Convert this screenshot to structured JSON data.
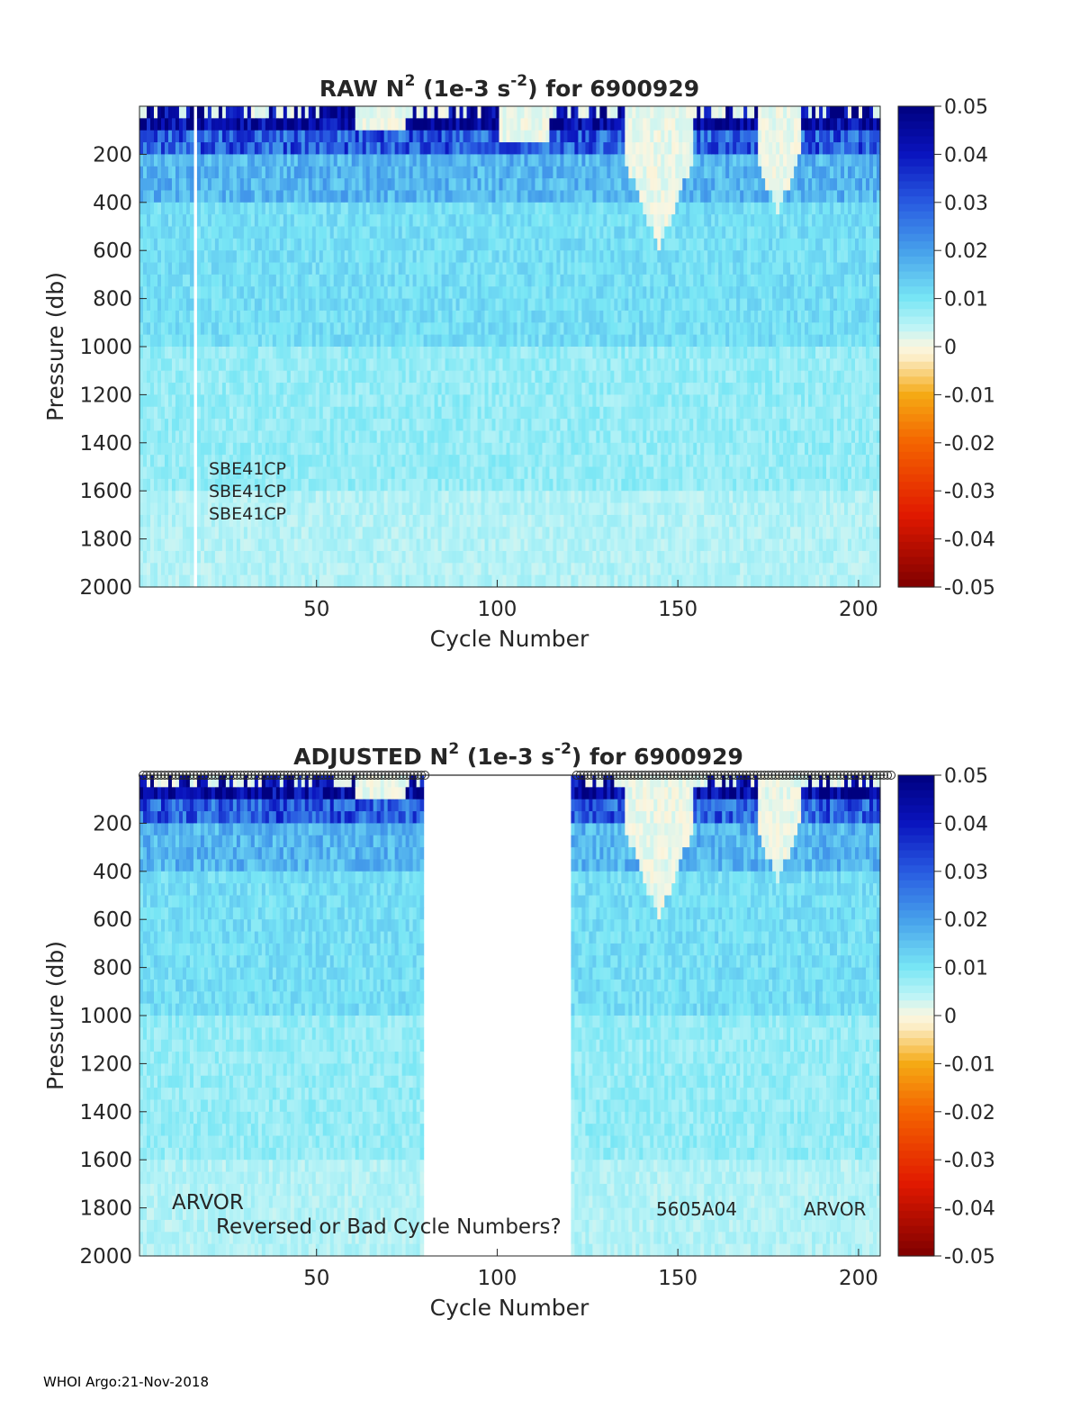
{
  "colorbar": {
    "ticks": [
      "0.05",
      "0.04",
      "0.03",
      "0.02",
      "0.01",
      "0",
      "-0.01",
      "-0.02",
      "-0.03",
      "-0.04",
      "-0.05"
    ],
    "range": [
      -0.05,
      0.05
    ]
  },
  "colors": {
    "positive_max": "#00007f",
    "mid_blue": "#3c8cf0",
    "light_cyan": "#9eeef8",
    "zero": "#fbf3de",
    "orange": "#f4a000",
    "red": "#e01a00",
    "negative_max": "#7f0000",
    "missing": "#ffffff"
  },
  "chart_data": [
    {
      "type": "heatmap",
      "title_parts": [
        "RAW N",
        "2",
        " (1e-3 s",
        "-2",
        ") for 6900929"
      ],
      "xlabel": "Cycle Number",
      "ylabel": "Pressure (db)",
      "xlim": [
        1,
        206
      ],
      "ylim": [
        2000,
        0
      ],
      "x_ticks": [
        "50",
        "100",
        "150",
        "200"
      ],
      "y_ticks": [
        "200",
        "400",
        "600",
        "800",
        "1000",
        "1200",
        "1400",
        "1600",
        "1800",
        "2000"
      ],
      "annotations": [
        "SBE41CP",
        "SBE41CP",
        "SBE41CP"
      ],
      "missing_cycles": [
        16
      ],
      "typical_values": {
        "surface_max": 0.05,
        "deep": 0.005,
        "range": [
          -0.05,
          0.05
        ]
      }
    },
    {
      "type": "heatmap",
      "title_parts": [
        "ADJUSTED N",
        "2",
        " (1e-3 s",
        "-2",
        ") for 6900929"
      ],
      "xlabel": "Cycle Number",
      "ylabel": "Pressure (db)",
      "xlim": [
        1,
        206
      ],
      "ylim": [
        2000,
        0
      ],
      "x_ticks": [
        "50",
        "100",
        "150",
        "200"
      ],
      "y_ticks": [
        "200",
        "400",
        "600",
        "800",
        "1000",
        "1200",
        "1400",
        "1600",
        "1800",
        "2000"
      ],
      "annotations": [
        "ARVOR",
        "Reversed or Bad Cycle Numbers?",
        "5605A04",
        "ARVOR"
      ],
      "missing_cycles_range": [
        80,
        120
      ],
      "marker_row": "circles at each cycle along top edge",
      "typical_values": {
        "surface_max": 0.05,
        "deep": 0.005,
        "range": [
          -0.05,
          0.05
        ]
      }
    }
  ],
  "footer": "WHOI Argo:21-Nov-2018"
}
